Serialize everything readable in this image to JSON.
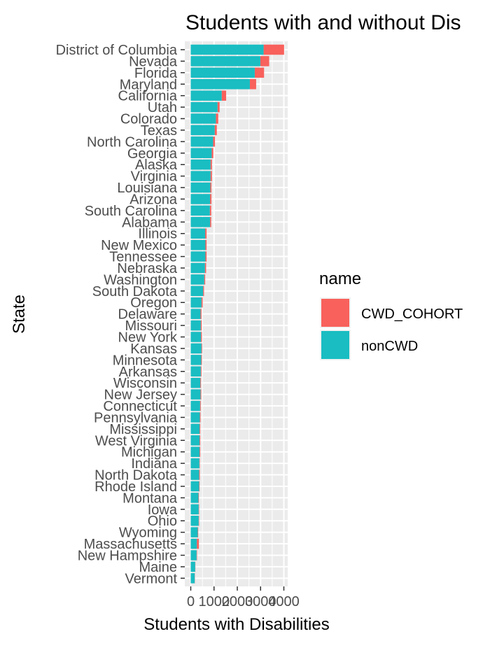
{
  "chart_data": {
    "type": "bar",
    "orientation": "horizontal",
    "stacked": true,
    "title": "Students with and without Dis",
    "xlabel": "Students with Disabilities",
    "ylabel": "State",
    "xlim": [
      0,
      4000
    ],
    "x_ticks": [
      0,
      1000,
      2000,
      3000,
      4000
    ],
    "x_tick_labels": [
      "0",
      "1000",
      "2000",
      "3000",
      "4000"
    ],
    "grid": true,
    "legend": {
      "title": "name",
      "position": "right"
    },
    "categories": [
      "District of Columbia",
      "Nevada",
      "Florida",
      "Maryland",
      "California",
      "Utah",
      "Colorado",
      "Texas",
      "North Carolina",
      "Georgia",
      "Alaska",
      "Virginia",
      "Louisiana",
      "Arizona",
      "South Carolina",
      "Alabama",
      "Illinois",
      "New Mexico",
      "Tennessee",
      "Nebraska",
      "Washington",
      "South Dakota",
      "Oregon",
      "Delaware",
      "Missouri",
      "New York",
      "Kansas",
      "Minnesota",
      "Arkansas",
      "Wisconsin",
      "New Jersey",
      "Connecticut",
      "Pennsylvania",
      "Mississippi",
      "West Virginia",
      "Michigan",
      "Indiana",
      "North Dakota",
      "Rhode Island",
      "Montana",
      "Iowa",
      "Ohio",
      "Wyoming",
      "Massachusetts",
      "New Hampshire",
      "Maine",
      "Vermont"
    ],
    "series": [
      {
        "name": "nonCWD",
        "color": "#19bdc2",
        "values": [
          3130,
          2990,
          2750,
          2540,
          1330,
          1150,
          1080,
          1030,
          960,
          900,
          850,
          850,
          840,
          830,
          820,
          830,
          620,
          630,
          630,
          610,
          580,
          530,
          460,
          420,
          430,
          440,
          460,
          450,
          430,
          410,
          420,
          400,
          390,
          380,
          380,
          380,
          370,
          360,
          360,
          330,
          340,
          340,
          300,
          260,
          250,
          190,
          170
        ]
      },
      {
        "name": "CWD_COHORT",
        "color": "#f8615c",
        "values": [
          880,
          380,
          400,
          270,
          190,
          90,
          100,
          90,
          80,
          70,
          60,
          60,
          50,
          60,
          60,
          50,
          60,
          50,
          50,
          50,
          40,
          40,
          50,
          40,
          40,
          40,
          30,
          30,
          30,
          30,
          30,
          30,
          30,
          30,
          30,
          30,
          20,
          30,
          20,
          20,
          20,
          20,
          20,
          90,
          20,
          10,
          10
        ]
      }
    ]
  }
}
